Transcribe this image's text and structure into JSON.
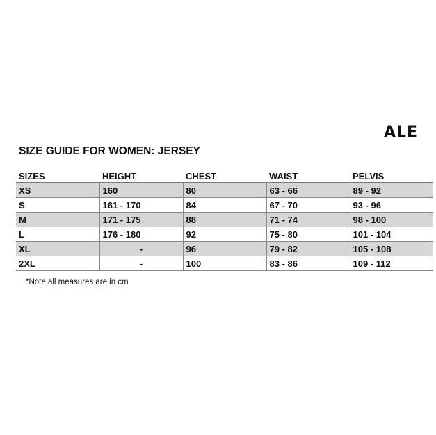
{
  "logo": "ALE",
  "title": "SIZE GUIDE FOR WOMEN: JERSEY",
  "headers": [
    "SIZES",
    "HEIGHT",
    "CHEST",
    "WAIST",
    "PELVIS"
  ],
  "rows": [
    [
      "XS",
      "160",
      "80",
      "63 - 66",
      "89 - 92"
    ],
    [
      "S",
      "161 - 170",
      "84",
      "67 - 70",
      "93 - 96"
    ],
    [
      "M",
      "171 - 175",
      "88",
      "71 - 74",
      "98 - 100"
    ],
    [
      "L",
      "176 - 180",
      "92",
      "75 - 80",
      "101 - 104"
    ],
    [
      "XL",
      "-",
      "96",
      "79 - 82",
      "105 - 108"
    ],
    [
      "2XL",
      "-",
      "100",
      "83 - 86",
      "109 - 112"
    ]
  ],
  "note": "*Note all measures are in cm",
  "colors": {
    "row_shade": "#d6d6d6",
    "rule": "#777777"
  }
}
